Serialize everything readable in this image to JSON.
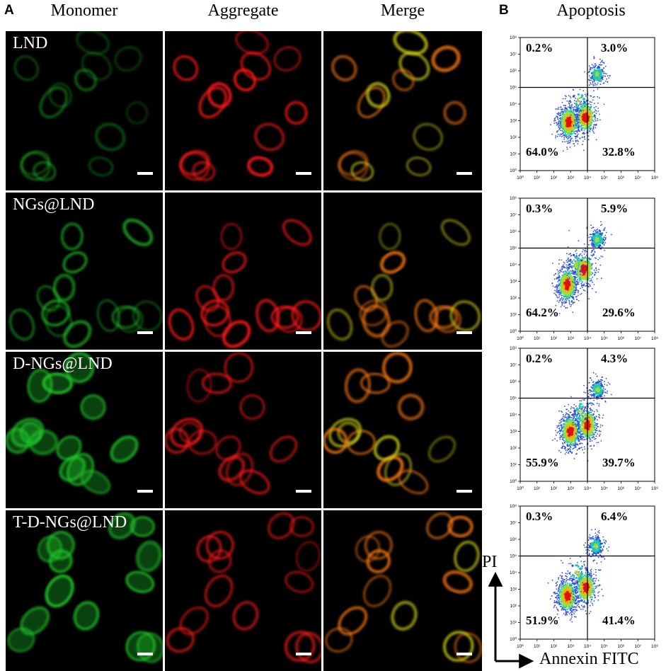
{
  "panel_labels": {
    "a": "A",
    "b": "B"
  },
  "columns": {
    "monomer": "Monomer",
    "aggregate": "Aggregate",
    "merge": "Merge",
    "apoptosis": "Apoptosis"
  },
  "rows": [
    {
      "label": "LND"
    },
    {
      "label": "NGs@LND"
    },
    {
      "label": "D-NGs@LND"
    },
    {
      "label": "T-D-NGs@LND"
    }
  ],
  "colors": {
    "monomer": "#22c92a",
    "aggregate": "#ff1a1a",
    "merge": "#e89a18",
    "background": "#000000"
  },
  "axes": {
    "y_label": "PI",
    "x_label": "Annexin FITC"
  },
  "tick_labels": {
    "x": [
      "10⁰",
      "10¹",
      "10²",
      "10³",
      "10⁴",
      "10⁵",
      "10⁶",
      "10⁷",
      "10⁸"
    ],
    "y": [
      "10⁰",
      "10¹",
      "10²",
      "10³",
      "10⁴",
      "10⁵",
      "10⁶",
      "10⁷",
      "10⁸"
    ]
  },
  "chart_data": [
    {
      "type": "scatter",
      "axis_scale": "log",
      "xlim_log10": [
        0,
        8
      ],
      "ylim_log10": [
        0,
        8
      ],
      "quadrant_gate_log10": {
        "x": 4.0,
        "y": 5.0
      },
      "quadrants": {
        "upper_left": "0.2%",
        "upper_right": "3.0%",
        "lower_left": "64.0%",
        "lower_right": "32.8%"
      },
      "clusters_log10": [
        [
          2.9,
          2.9,
          0.55
        ],
        [
          3.9,
          3.2,
          0.3
        ],
        [
          4.6,
          5.8,
          0.12
        ],
        [
          3.5,
          4.2,
          0.03
        ]
      ]
    },
    {
      "type": "scatter",
      "axis_scale": "log",
      "xlim_log10": [
        0,
        8
      ],
      "ylim_log10": [
        0,
        8
      ],
      "quadrant_gate_log10": {
        "x": 4.0,
        "y": 5.0
      },
      "quadrants": {
        "upper_left": "0.3%",
        "upper_right": "5.9%",
        "lower_left": "64.2%",
        "lower_right": "29.6%"
      },
      "clusters_log10": [
        [
          2.8,
          2.8,
          0.55
        ],
        [
          3.8,
          3.7,
          0.28
        ],
        [
          4.6,
          5.5,
          0.13
        ],
        [
          3.3,
          4.0,
          0.04
        ]
      ]
    },
    {
      "type": "scatter",
      "axis_scale": "log",
      "xlim_log10": [
        0,
        8
      ],
      "ylim_log10": [
        0,
        8
      ],
      "quadrant_gate_log10": {
        "x": 4.0,
        "y": 5.0
      },
      "quadrants": {
        "upper_left": "0.2%",
        "upper_right": "4.3%",
        "lower_left": "55.9%",
        "lower_right": "39.7%"
      },
      "clusters_log10": [
        [
          3.0,
          3.0,
          0.5
        ],
        [
          4.0,
          3.4,
          0.35
        ],
        [
          4.6,
          5.5,
          0.12
        ],
        [
          3.6,
          4.1,
          0.03
        ]
      ]
    },
    {
      "type": "scatter",
      "axis_scale": "log",
      "xlim_log10": [
        0,
        8
      ],
      "ylim_log10": [
        0,
        8
      ],
      "quadrant_gate_log10": {
        "x": 4.0,
        "y": 5.0
      },
      "quadrants": {
        "upper_left": "0.3%",
        "upper_right": "6.4%",
        "lower_left": "51.9%",
        "lower_right": "41.4%"
      },
      "clusters_log10": [
        [
          2.8,
          2.6,
          0.48
        ],
        [
          3.9,
          3.1,
          0.36
        ],
        [
          4.5,
          5.6,
          0.13
        ],
        [
          3.4,
          4.0,
          0.03
        ]
      ]
    }
  ]
}
